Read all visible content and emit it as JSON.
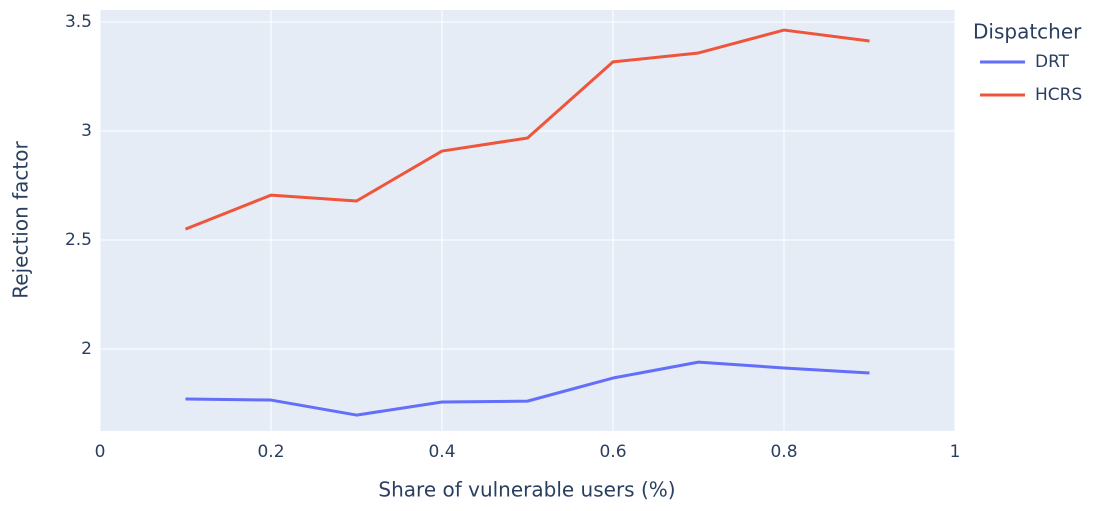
{
  "chart_data": {
    "type": "line",
    "x_label": "Share of vulnerable users (%)",
    "y_label": "Rejection factor",
    "x": [
      0.1,
      0.2,
      0.3,
      0.4,
      0.5,
      0.6,
      0.7,
      0.8,
      0.9
    ],
    "series": [
      {
        "name": "DRT",
        "color": "#636efa",
        "values": [
          1.771,
          1.766,
          1.697,
          1.757,
          1.761,
          1.867,
          1.94,
          1.913,
          1.89
        ]
      },
      {
        "name": "HCRS",
        "color": "#ef553b",
        "values": [
          2.55,
          2.706,
          2.679,
          2.908,
          2.968,
          3.317,
          3.358,
          3.463,
          3.413
        ]
      }
    ],
    "legend_title": "Dispatcher",
    "legend_position": "right",
    "xlim": [
      0,
      1
    ],
    "xticks": [
      0,
      0.2,
      0.4,
      0.6,
      0.8,
      1
    ],
    "ylim": [
      1.624,
      3.555
    ],
    "yticks": [
      2,
      2.5,
      3,
      3.5
    ],
    "grid": true
  }
}
